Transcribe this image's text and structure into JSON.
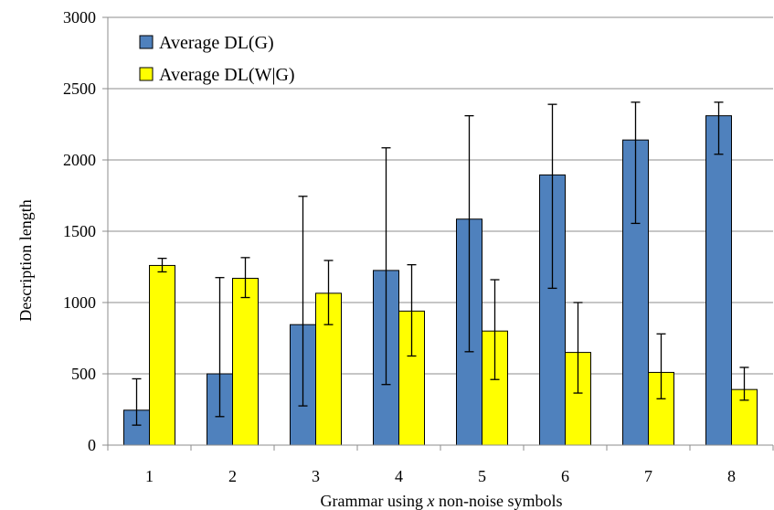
{
  "chart_data": {
    "type": "bar",
    "title": "",
    "xlabel_parts": [
      "Grammar using ",
      "x",
      " non-noise symbols"
    ],
    "ylabel": "Description length",
    "ylim": [
      0,
      3000
    ],
    "yticks": [
      0,
      500,
      1000,
      1500,
      2000,
      2500,
      3000
    ],
    "grid": "horizontal",
    "legend_position": "top-left",
    "categories": [
      "1",
      "2",
      "3",
      "4",
      "5",
      "6",
      "7",
      "8"
    ],
    "series": [
      {
        "name": "Average DL(G)",
        "color": "#4f81bd",
        "values": [
          245,
          500,
          845,
          1225,
          1585,
          1895,
          2140,
          2310
        ],
        "error_low": [
          140,
          200,
          275,
          425,
          655,
          1100,
          1555,
          2040
        ],
        "error_high": [
          465,
          1175,
          1745,
          2085,
          2310,
          2390,
          2405,
          2405
        ]
      },
      {
        "name": "Average DL(W|G)",
        "color": "#ffff00",
        "values": [
          1260,
          1170,
          1065,
          940,
          800,
          650,
          510,
          390
        ],
        "error_low": [
          1215,
          1035,
          845,
          625,
          460,
          365,
          325,
          315
        ],
        "error_high": [
          1310,
          1315,
          1295,
          1265,
          1160,
          1000,
          780,
          545
        ]
      }
    ]
  }
}
